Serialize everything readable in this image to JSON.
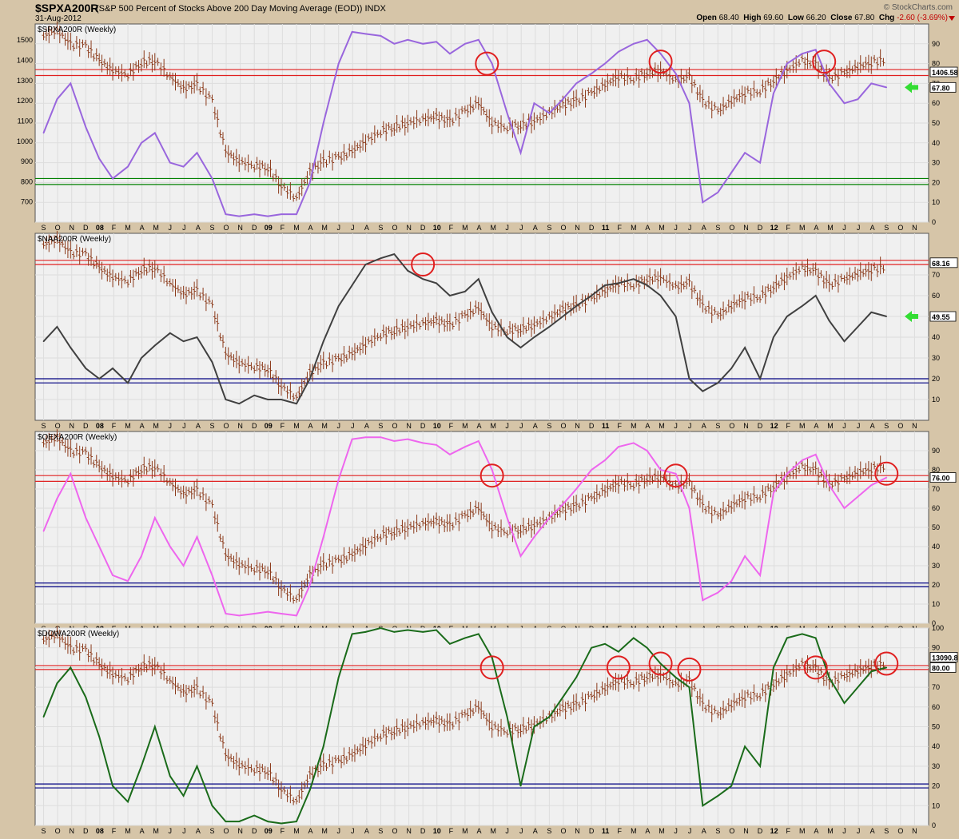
{
  "header": {
    "symbol": "$SPXA200R",
    "description": "(S&P 500 Percent of Stocks Above 200 Day Moving Average (EOD))",
    "exchange": "INDX",
    "date": "31-Aug-2012",
    "brand": "© StockCharts.com",
    "open_label": "Open",
    "open": "68.40",
    "high_label": "High",
    "high": "69.60",
    "low_label": "Low",
    "low": "66.20",
    "close_label": "Close",
    "close": "67.80",
    "chg_label": "Chg",
    "chg": "-2.60 (-3.69%)"
  },
  "x_axis_labels": [
    "S",
    "O",
    "N",
    "D",
    "08",
    "F",
    "M",
    "A",
    "M",
    "J",
    "J",
    "A",
    "S",
    "O",
    "N",
    "D",
    "09",
    "F",
    "M",
    "A",
    "M",
    "J",
    "J",
    "A",
    "S",
    "O",
    "N",
    "D",
    "10",
    "F",
    "M",
    "A",
    "M",
    "J",
    "J",
    "A",
    "S",
    "O",
    "N",
    "D",
    "11",
    "F",
    "M",
    "A",
    "M",
    "J",
    "J",
    "A",
    "S",
    "O",
    "N",
    "D",
    "12",
    "F",
    "M",
    "A",
    "M",
    "J",
    "J",
    "A",
    "S",
    "O",
    "N"
  ],
  "colors": {
    "price_bars": "#8b3a1a",
    "resistance": "#e02020",
    "support_green": "#008000",
    "support_blue": "#000080",
    "circle": "#e02020",
    "arrow": "#33dd33"
  },
  "chart_data": [
    {
      "type": "line",
      "name": "$SPXA200R",
      "panel_title": "$SPXA200R (Weekly)",
      "line_color": "#9966dd",
      "ylim": [
        0,
        100
      ],
      "right_ticks": [
        0,
        10,
        20,
        30,
        40,
        50,
        60,
        70,
        80,
        90
      ],
      "left_ticks": [
        700,
        800,
        900,
        1000,
        1100,
        1200,
        1300,
        1400,
        1500
      ],
      "left_range": [
        600,
        1580
      ],
      "hlines": [
        {
          "value": 77,
          "color": "#e02020"
        },
        {
          "value": 74,
          "color": "#e02020"
        },
        {
          "value": 22,
          "color": "#008000"
        },
        {
          "value": 19,
          "color": "#008000"
        }
      ],
      "last_value_label": "67.80",
      "price_label": "1406.58",
      "arrow": true,
      "circles": [
        {
          "date": 2010.3,
          "y": 80
        },
        {
          "date": 2011.33,
          "y": 81
        },
        {
          "date": 2012.3,
          "y": 81
        }
      ],
      "series": [
        {
          "name": "$SPXA200R",
          "x": [
            2007.67,
            2007.75,
            2007.83,
            2007.92,
            2008.0,
            2008.08,
            2008.17,
            2008.25,
            2008.33,
            2008.42,
            2008.5,
            2008.58,
            2008.67,
            2008.75,
            2008.83,
            2008.92,
            2009.0,
            2009.08,
            2009.17,
            2009.25,
            2009.33,
            2009.42,
            2009.5,
            2009.58,
            2009.67,
            2009.75,
            2009.83,
            2009.92,
            2010.0,
            2010.08,
            2010.17,
            2010.25,
            2010.33,
            2010.42,
            2010.5,
            2010.58,
            2010.67,
            2010.75,
            2010.83,
            2010.92,
            2011.0,
            2011.08,
            2011.17,
            2011.25,
            2011.33,
            2011.42,
            2011.5,
            2011.58,
            2011.67,
            2011.75,
            2011.83,
            2011.92,
            2012.0,
            2012.08,
            2012.17,
            2012.25,
            2012.33,
            2012.42,
            2012.5,
            2012.58,
            2012.67
          ],
          "values": [
            45,
            62,
            70,
            48,
            32,
            22,
            28,
            40,
            45,
            30,
            28,
            35,
            22,
            4,
            3,
            4,
            3,
            4,
            4,
            20,
            50,
            80,
            96,
            95,
            94,
            90,
            92,
            90,
            91,
            85,
            90,
            92,
            80,
            55,
            35,
            60,
            55,
            62,
            70,
            75,
            80,
            86,
            90,
            92,
            85,
            75,
            60,
            10,
            15,
            25,
            35,
            30,
            65,
            80,
            85,
            87,
            70,
            60,
            62,
            70,
            68
          ]
        }
      ]
    },
    {
      "type": "line",
      "name": "$NAA200R",
      "panel_title": "$NAA200R (Weekly)",
      "line_color": "#404040",
      "ylim": [
        0,
        90
      ],
      "right_ticks": [
        10,
        20,
        30,
        40,
        50,
        60,
        70
      ],
      "hlines": [
        {
          "value": 77,
          "color": "#e02020"
        },
        {
          "value": 75,
          "color": "#e02020"
        },
        {
          "value": 20,
          "color": "#000080"
        },
        {
          "value": 18,
          "color": "#000080"
        }
      ],
      "last_value_label": "49.55",
      "price_label": "68.16",
      "arrow": true,
      "circles": [
        {
          "date": 2009.92,
          "y": 75
        }
      ],
      "series": [
        {
          "name": "$NAA200R",
          "x": [
            2007.67,
            2007.75,
            2007.83,
            2007.92,
            2008.0,
            2008.08,
            2008.17,
            2008.25,
            2008.33,
            2008.42,
            2008.5,
            2008.58,
            2008.67,
            2008.75,
            2008.83,
            2008.92,
            2009.0,
            2009.08,
            2009.17,
            2009.25,
            2009.33,
            2009.42,
            2009.5,
            2009.58,
            2009.67,
            2009.75,
            2009.83,
            2009.92,
            2010.0,
            2010.08,
            2010.17,
            2010.25,
            2010.33,
            2010.42,
            2010.5,
            2010.58,
            2010.67,
            2010.75,
            2010.83,
            2010.92,
            2011.0,
            2011.08,
            2011.17,
            2011.25,
            2011.33,
            2011.42,
            2011.5,
            2011.58,
            2011.67,
            2011.75,
            2011.83,
            2011.92,
            2012.0,
            2012.08,
            2012.17,
            2012.25,
            2012.33,
            2012.42,
            2012.5,
            2012.58,
            2012.67
          ],
          "values": [
            38,
            45,
            35,
            25,
            20,
            25,
            18,
            30,
            36,
            42,
            38,
            40,
            28,
            10,
            8,
            12,
            10,
            10,
            8,
            20,
            38,
            55,
            65,
            75,
            78,
            80,
            72,
            68,
            66,
            60,
            62,
            68,
            52,
            40,
            35,
            40,
            45,
            50,
            55,
            60,
            65,
            66,
            68,
            65,
            60,
            50,
            20,
            14,
            18,
            25,
            35,
            20,
            40,
            50,
            55,
            60,
            48,
            38,
            45,
            52,
            50
          ]
        }
      ]
    },
    {
      "type": "line",
      "name": "$OEXA200R",
      "panel_title": "$OEXA200R (Weekly)",
      "line_color": "#ee66ee",
      "ylim": [
        0,
        100
      ],
      "right_ticks": [
        0,
        10,
        20,
        30,
        40,
        50,
        60,
        70,
        80,
        90
      ],
      "hlines": [
        {
          "value": 77,
          "color": "#e02020"
        },
        {
          "value": 74,
          "color": "#e02020"
        },
        {
          "value": 21,
          "color": "#000080"
        },
        {
          "value": 19,
          "color": "#000080"
        }
      ],
      "last_value_label": "76.00",
      "arrow": false,
      "circles": [
        {
          "date": 2010.33,
          "y": 77
        },
        {
          "date": 2011.42,
          "y": 77
        },
        {
          "date": 2012.67,
          "y": 78
        }
      ],
      "series": [
        {
          "name": "$OEXA200R",
          "x": [
            2007.67,
            2007.75,
            2007.83,
            2007.92,
            2008.0,
            2008.08,
            2008.17,
            2008.25,
            2008.33,
            2008.42,
            2008.5,
            2008.58,
            2008.67,
            2008.75,
            2008.83,
            2008.92,
            2009.0,
            2009.08,
            2009.17,
            2009.25,
            2009.33,
            2009.42,
            2009.5,
            2009.58,
            2009.67,
            2009.75,
            2009.83,
            2009.92,
            2010.0,
            2010.08,
            2010.17,
            2010.25,
            2010.33,
            2010.42,
            2010.5,
            2010.58,
            2010.67,
            2010.75,
            2010.83,
            2010.92,
            2011.0,
            2011.08,
            2011.17,
            2011.25,
            2011.33,
            2011.42,
            2011.5,
            2011.58,
            2011.67,
            2011.75,
            2011.83,
            2011.92,
            2012.0,
            2012.08,
            2012.17,
            2012.25,
            2012.33,
            2012.42,
            2012.5,
            2012.58,
            2012.67
          ],
          "values": [
            48,
            65,
            78,
            55,
            40,
            25,
            22,
            35,
            55,
            40,
            30,
            45,
            25,
            5,
            4,
            5,
            6,
            5,
            4,
            20,
            45,
            75,
            96,
            97,
            97,
            95,
            96,
            94,
            93,
            88,
            92,
            95,
            80,
            55,
            35,
            45,
            55,
            62,
            70,
            80,
            85,
            92,
            94,
            90,
            80,
            78,
            60,
            12,
            16,
            22,
            35,
            25,
            68,
            78,
            85,
            88,
            72,
            60,
            66,
            72,
            76
          ]
        }
      ]
    },
    {
      "type": "line",
      "name": "$DOWA200R",
      "panel_title": "$DOWA200R (Weekly)",
      "line_color": "#1a6b1a",
      "ylim": [
        0,
        100
      ],
      "right_ticks": [
        0,
        10,
        20,
        30,
        40,
        50,
        60,
        70,
        80,
        90,
        100
      ],
      "hlines": [
        {
          "value": 81,
          "color": "#e02020"
        },
        {
          "value": 79,
          "color": "#e02020"
        },
        {
          "value": 21,
          "color": "#000080"
        },
        {
          "value": 19,
          "color": "#000080"
        }
      ],
      "last_value_label": "80.00",
      "price_label": "13090.8",
      "arrow": false,
      "circles": [
        {
          "date": 2010.33,
          "y": 80
        },
        {
          "date": 2011.08,
          "y": 80
        },
        {
          "date": 2011.33,
          "y": 82
        },
        {
          "date": 2011.5,
          "y": 79
        },
        {
          "date": 2012.25,
          "y": 80
        },
        {
          "date": 2012.67,
          "y": 82
        }
      ],
      "series": [
        {
          "name": "$DOWA200R",
          "x": [
            2007.67,
            2007.75,
            2007.83,
            2007.92,
            2008.0,
            2008.08,
            2008.17,
            2008.25,
            2008.33,
            2008.42,
            2008.5,
            2008.58,
            2008.67,
            2008.75,
            2008.83,
            2008.92,
            2009.0,
            2009.08,
            2009.17,
            2009.25,
            2009.33,
            2009.42,
            2009.5,
            2009.58,
            2009.67,
            2009.75,
            2009.83,
            2009.92,
            2010.0,
            2010.08,
            2010.17,
            2010.25,
            2010.33,
            2010.42,
            2010.5,
            2010.58,
            2010.67,
            2010.75,
            2010.83,
            2010.92,
            2011.0,
            2011.08,
            2011.17,
            2011.25,
            2011.33,
            2011.42,
            2011.5,
            2011.58,
            2011.67,
            2011.75,
            2011.83,
            2011.92,
            2012.0,
            2012.08,
            2012.17,
            2012.25,
            2012.33,
            2012.42,
            2012.5,
            2012.58,
            2012.67
          ],
          "values": [
            55,
            72,
            80,
            65,
            45,
            20,
            12,
            30,
            50,
            25,
            15,
            30,
            10,
            2,
            2,
            5,
            2,
            1,
            2,
            18,
            40,
            75,
            97,
            98,
            100,
            98,
            99,
            98,
            99,
            92,
            95,
            97,
            85,
            55,
            20,
            50,
            55,
            65,
            75,
            90,
            92,
            88,
            95,
            90,
            82,
            75,
            70,
            10,
            15,
            20,
            40,
            30,
            80,
            95,
            97,
            95,
            75,
            62,
            70,
            78,
            80
          ]
        }
      ]
    }
  ],
  "price_overlay": {
    "name": "price",
    "x": [
      2007.67,
      2007.75,
      2007.83,
      2007.92,
      2008.0,
      2008.08,
      2008.17,
      2008.25,
      2008.33,
      2008.42,
      2008.5,
      2008.58,
      2008.67,
      2008.75,
      2008.83,
      2008.92,
      2009.0,
      2009.08,
      2009.17,
      2009.25,
      2009.33,
      2009.42,
      2009.5,
      2009.58,
      2009.67,
      2009.75,
      2009.83,
      2009.92,
      2010.0,
      2010.08,
      2010.17,
      2010.25,
      2010.33,
      2010.42,
      2010.5,
      2010.58,
      2010.67,
      2010.75,
      2010.83,
      2010.92,
      2011.0,
      2011.08,
      2011.17,
      2011.25,
      2011.33,
      2011.42,
      2011.5,
      2011.58,
      2011.67,
      2011.75,
      2011.83,
      2011.92,
      2012.0,
      2012.08,
      2012.17,
      2012.25,
      2012.33,
      2012.42,
      2012.5,
      2012.58,
      2012.67
    ],
    "values": [
      1520,
      1550,
      1480,
      1470,
      1400,
      1350,
      1330,
      1390,
      1400,
      1320,
      1260,
      1280,
      1200,
      950,
      900,
      880,
      870,
      780,
      720,
      850,
      900,
      920,
      950,
      1000,
      1050,
      1070,
      1090,
      1110,
      1120,
      1100,
      1150,
      1190,
      1090,
      1070,
      1080,
      1100,
      1140,
      1180,
      1200,
      1240,
      1280,
      1320,
      1310,
      1340,
      1350,
      1300,
      1320,
      1200,
      1150,
      1200,
      1240,
      1250,
      1300,
      1350,
      1400,
      1380,
      1310,
      1340,
      1370,
      1390,
      1406
    ]
  }
}
